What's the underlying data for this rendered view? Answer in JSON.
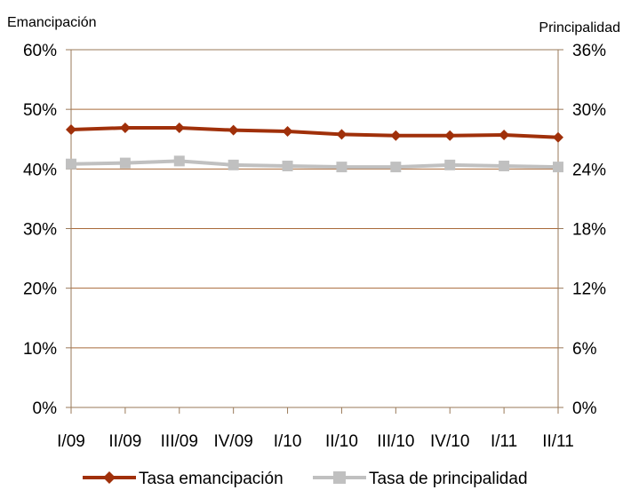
{
  "chart_data": {
    "type": "line",
    "categories": [
      "I/09",
      "II/09",
      "III/09",
      "IV/09",
      "I/10",
      "II/10",
      "III/10",
      "IV/10",
      "I/11",
      "II/11"
    ],
    "ylabel": "Emancipación",
    "y2label": "Principalidad",
    "ylim": [
      0,
      60
    ],
    "y2lim": [
      0,
      36
    ],
    "yticks": [
      "0%",
      "10%",
      "20%",
      "30%",
      "40%",
      "50%",
      "60%"
    ],
    "y2ticks": [
      "0%",
      "6%",
      "12%",
      "18%",
      "24%",
      "30%",
      "36%"
    ],
    "grid": true,
    "legend_position": "bottom",
    "series": [
      {
        "name": "Tasa emancipación",
        "axis": "left",
        "color": "#a0300a",
        "marker": "diamond",
        "values": [
          46.6,
          46.9,
          46.9,
          46.5,
          46.3,
          45.8,
          45.6,
          45.6,
          45.7,
          45.3
        ]
      },
      {
        "name": "Tasa de principalidad",
        "axis": "right",
        "color": "#c0c0c0",
        "marker": "square",
        "values": [
          24.5,
          24.6,
          24.8,
          24.4,
          24.3,
          24.2,
          24.2,
          24.4,
          24.3,
          24.2
        ]
      }
    ]
  }
}
